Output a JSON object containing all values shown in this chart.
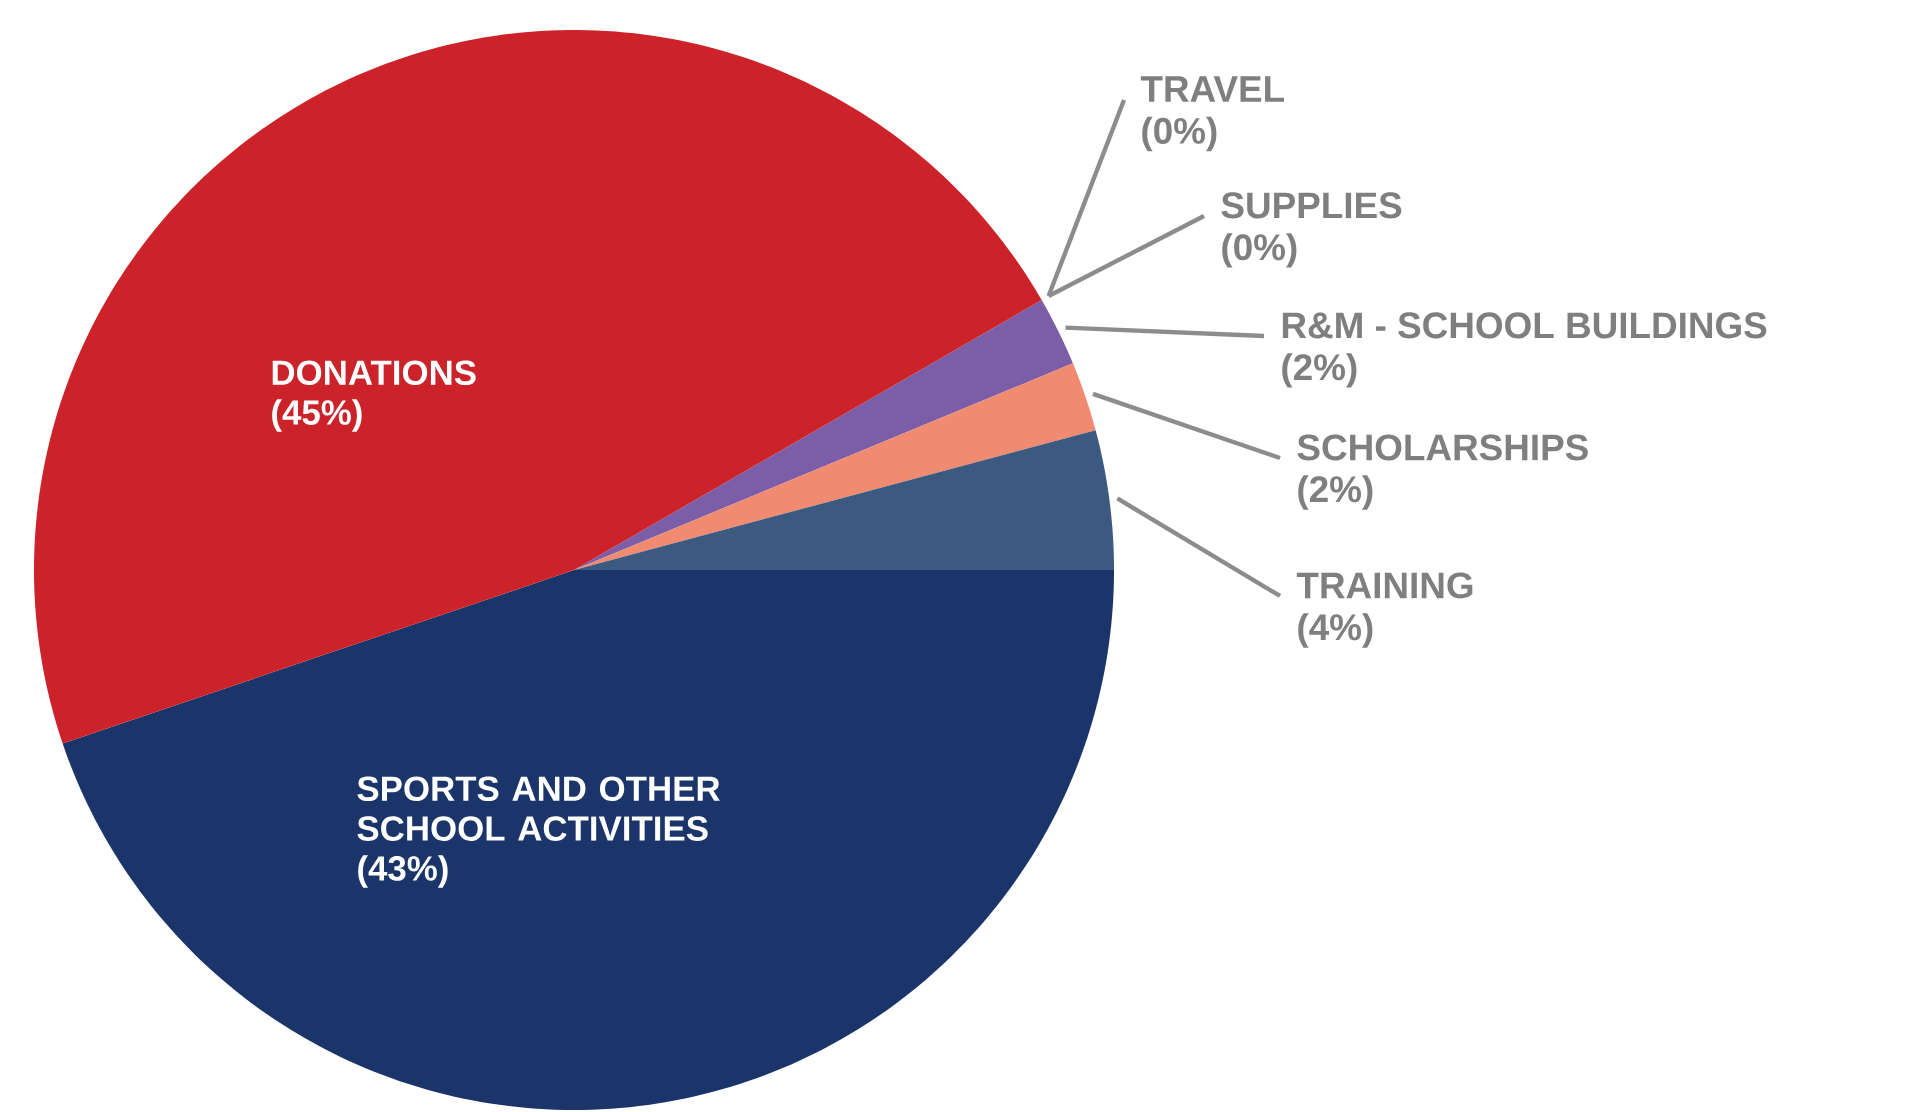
{
  "chart_data": {
    "type": "pie",
    "categories": [
      "TRAVEL",
      "SUPPLIES",
      "R&M - SCHOOL BUILDINGS",
      "SCHOLARSHIPS",
      "TRAINING",
      "SPORTS AND OTHER SCHOOL ACTIVITIES",
      "DONATIONS"
    ],
    "values": [
      0,
      0,
      2,
      2,
      4,
      43,
      45
    ],
    "colors": [
      "#10a84a",
      "#9ccc5a",
      "#7b5ea7",
      "#f08a70",
      "#3c5a80",
      "#1b356b",
      "#cc2229"
    ],
    "value_labels": [
      "(0%)",
      "(0%)",
      "(2%)",
      "(2%)",
      "(4%)",
      "(43%)",
      "(45%)"
    ]
  }
}
